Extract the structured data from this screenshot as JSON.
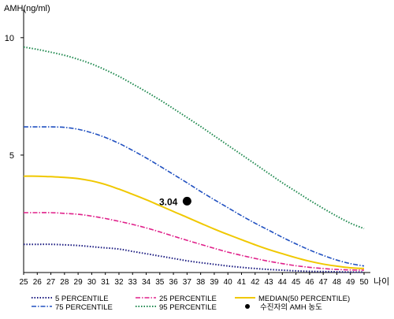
{
  "chart_data": {
    "type": "line",
    "ylabel": "AMH(ng/ml)",
    "xlabel": "나이",
    "xlim": [
      25,
      50
    ],
    "ylim": [
      0,
      11
    ],
    "y_ticks": [
      5,
      10
    ],
    "x": [
      25,
      26,
      27,
      28,
      29,
      30,
      31,
      32,
      33,
      34,
      35,
      36,
      37,
      38,
      39,
      40,
      41,
      42,
      43,
      44,
      45,
      46,
      47,
      48,
      49,
      50
    ],
    "grid": false,
    "legend_position": "bottom",
    "series": [
      {
        "name": "5 PERCENTILE",
        "color": "#1a1a80",
        "dash": "dotted",
        "values": [
          1.2,
          1.2,
          1.2,
          1.18,
          1.15,
          1.1,
          1.05,
          1.0,
          0.9,
          0.8,
          0.7,
          0.6,
          0.5,
          0.42,
          0.35,
          0.28,
          0.22,
          0.17,
          0.13,
          0.1,
          0.07,
          0.05,
          0.04,
          0.03,
          0.02,
          0.02
        ]
      },
      {
        "name": "25 PERCENTILE",
        "color": "#e0208a",
        "dash": "dashdot",
        "values": [
          2.55,
          2.55,
          2.55,
          2.52,
          2.48,
          2.4,
          2.3,
          2.18,
          2.05,
          1.9,
          1.73,
          1.55,
          1.37,
          1.2,
          1.03,
          0.87,
          0.73,
          0.6,
          0.48,
          0.38,
          0.29,
          0.22,
          0.17,
          0.13,
          0.11,
          0.1
        ]
      },
      {
        "name": "MEDIAN(50 PERCENTILE)",
        "color": "#f0c800",
        "dash": "solid",
        "values": [
          4.1,
          4.1,
          4.08,
          4.05,
          4.0,
          3.9,
          3.75,
          3.55,
          3.33,
          3.1,
          2.85,
          2.6,
          2.35,
          2.1,
          1.85,
          1.62,
          1.4,
          1.18,
          0.98,
          0.8,
          0.63,
          0.48,
          0.36,
          0.27,
          0.2,
          0.17
        ]
      },
      {
        "name": "75 PERCENTILE",
        "color": "#2050c0",
        "dash": "dashdot",
        "values": [
          6.2,
          6.2,
          6.2,
          6.18,
          6.1,
          5.95,
          5.75,
          5.5,
          5.2,
          4.88,
          4.53,
          4.18,
          3.82,
          3.45,
          3.1,
          2.76,
          2.42,
          2.1,
          1.8,
          1.5,
          1.22,
          0.96,
          0.73,
          0.53,
          0.38,
          0.28
        ]
      },
      {
        "name": "95 PERCENTILE",
        "color": "#208a50",
        "dash": "dotted",
        "values": [
          9.6,
          9.5,
          9.38,
          9.25,
          9.08,
          8.88,
          8.63,
          8.35,
          8.03,
          7.7,
          7.35,
          6.98,
          6.6,
          6.22,
          5.82,
          5.42,
          5.02,
          4.62,
          4.22,
          3.82,
          3.45,
          3.08,
          2.73,
          2.4,
          2.1,
          1.87
        ]
      }
    ],
    "point": {
      "name": "수진자의 AMH 농도",
      "x": 37,
      "y": 3.04,
      "label": "3.04",
      "color": "#000000"
    }
  }
}
